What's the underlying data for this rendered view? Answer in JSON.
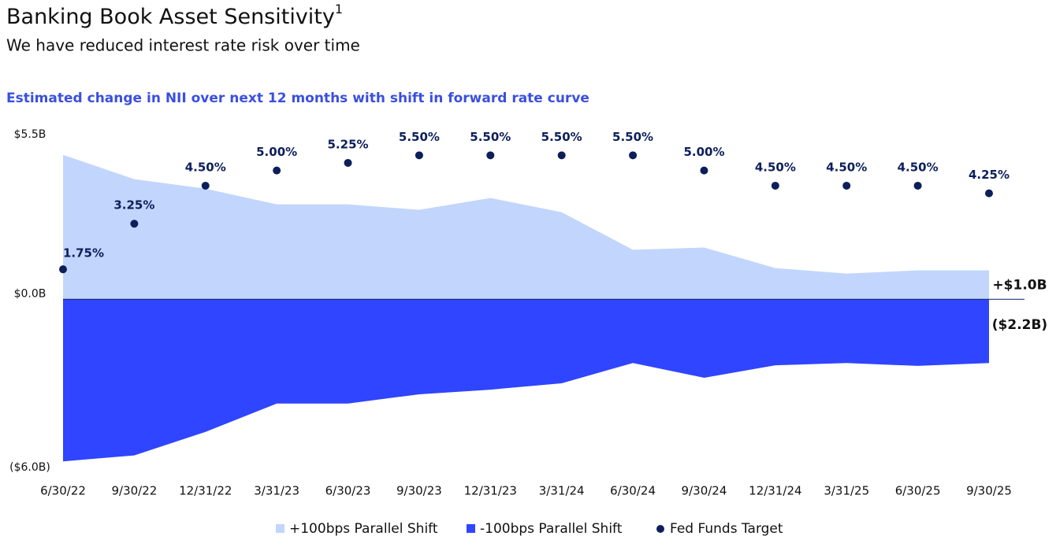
{
  "title": "Banking Book Asset Sensitivity",
  "title_footnote": "1",
  "subtitle": "We have reduced interest rate risk over time",
  "chart_data": {
    "type": "area",
    "title": "Estimated change in NII over next 12 months with shift in forward rate curve",
    "categories": [
      "6/30/22",
      "9/30/22",
      "12/31/22",
      "3/31/23",
      "6/30/23",
      "9/30/23",
      "12/31/23",
      "3/31/24",
      "6/30/24",
      "9/30/24",
      "12/31/24",
      "3/31/25",
      "6/30/25",
      "9/30/25"
    ],
    "ylim": [
      -6.0,
      5.5
    ],
    "yticks": [
      {
        "value": 5.5,
        "label": "$5.5B"
      },
      {
        "value": 0,
        "label": "$0.0B"
      },
      {
        "value": -6.0,
        "label": "($6.0B)"
      }
    ],
    "y2lim": [
      -4.95,
      6.0
    ],
    "series": [
      {
        "name": "+100bps Parallel Shift",
        "color": "#c2d5fc",
        "values": [
          4.99,
          4.15,
          3.82,
          3.28,
          3.28,
          3.09,
          3.5,
          3.01,
          1.71,
          1.79,
          1.08,
          0.89,
          1.0,
          1.0
        ],
        "value_labels": [
          null,
          null,
          null,
          null,
          null,
          null,
          null,
          null,
          null,
          null,
          null,
          null,
          null,
          "+$1.0B"
        ]
      },
      {
        "name": "-100bps Parallel Shift",
        "color": "#2f45ff",
        "values": [
          -5.6,
          -5.39,
          -4.58,
          -3.6,
          -3.6,
          -3.28,
          -3.12,
          -2.9,
          -2.2,
          -2.71,
          -2.28,
          -2.2,
          -2.3,
          -2.2
        ],
        "value_labels": [
          null,
          null,
          null,
          null,
          null,
          null,
          null,
          null,
          null,
          null,
          null,
          null,
          null,
          "($2.2B)"
        ]
      },
      {
        "name": "Fed Funds Target",
        "type": "scatter",
        "axis": "y2",
        "color": "#0c1f5b",
        "values": [
          1.75,
          3.25,
          4.5,
          5.0,
          5.25,
          5.5,
          5.5,
          5.5,
          5.5,
          5.0,
          4.5,
          4.5,
          4.5,
          4.25
        ],
        "value_labels": [
          "1.75%",
          "3.25%",
          "4.50%",
          "5.00%",
          "5.25%",
          "5.50%",
          "5.50%",
          "5.50%",
          "5.50%",
          "5.00%",
          "4.50%",
          "4.50%",
          "4.50%",
          "4.25%"
        ]
      }
    ]
  }
}
